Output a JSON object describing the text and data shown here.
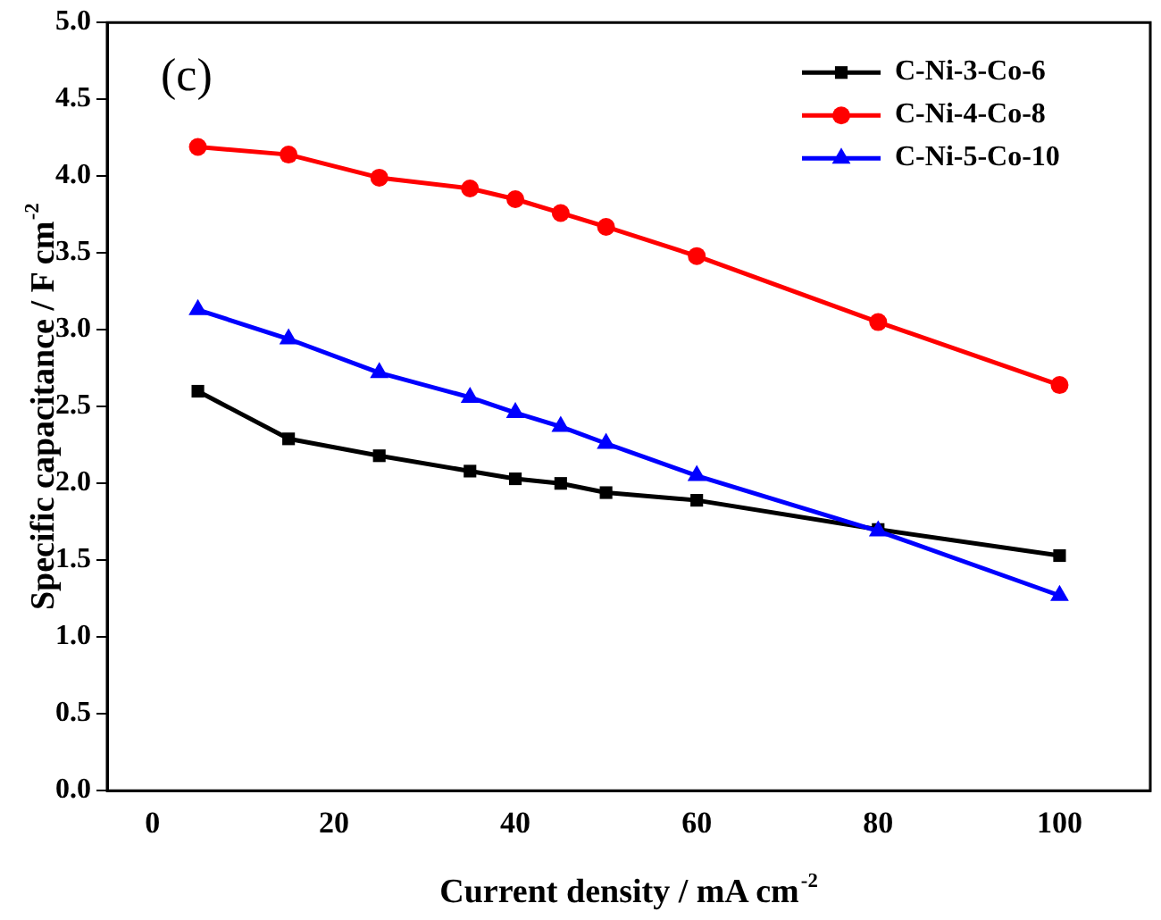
{
  "chart_data": {
    "type": "line",
    "xlabel": "Current density / mA cm$^{-2}$",
    "ylabel": "Specific capacitance / F cm$^{-2}$",
    "annotations": [
      "(c)"
    ],
    "x": [
      5,
      15,
      25,
      35,
      40,
      45,
      50,
      60,
      80,
      100
    ],
    "xlim": [
      -5,
      110
    ],
    "xticks": [
      0,
      20,
      40,
      60,
      80,
      100
    ],
    "ylim": [
      0,
      5
    ],
    "yticks": [
      {
        "value": 0,
        "label": "0.0"
      },
      0.5,
      {
        "value": 1,
        "label": "1.0"
      },
      1.5,
      {
        "value": 2,
        "label": "2.0"
      },
      2.5,
      {
        "value": 3,
        "label": "3.0"
      },
      3.5,
      {
        "value": 4,
        "label": "4.0"
      },
      4.5,
      {
        "value": 5,
        "label": "5.0"
      }
    ],
    "series": [
      {
        "name": "C-Ni-3-Co-6",
        "color": "#000000",
        "marker": "square",
        "values": [
          2.6,
          2.29,
          2.18,
          2.08,
          2.03,
          2.0,
          1.94,
          1.89,
          1.7,
          1.53
        ]
      },
      {
        "name": "C-Ni-4-Co-8",
        "color": "#ff0000",
        "marker": "circle",
        "values": [
          4.19,
          4.14,
          3.99,
          3.92,
          3.85,
          3.76,
          3.67,
          3.48,
          3.05,
          2.64
        ]
      },
      {
        "name": "C-Ni-5-Co-10",
        "color": "#0000ff",
        "marker": "triangle",
        "values": [
          3.13,
          2.94,
          2.72,
          2.56,
          2.46,
          2.37,
          2.26,
          2.05,
          1.69,
          1.27
        ]
      }
    ],
    "legend": "top right",
    "grid": false,
    "line_style": "solid"
  }
}
